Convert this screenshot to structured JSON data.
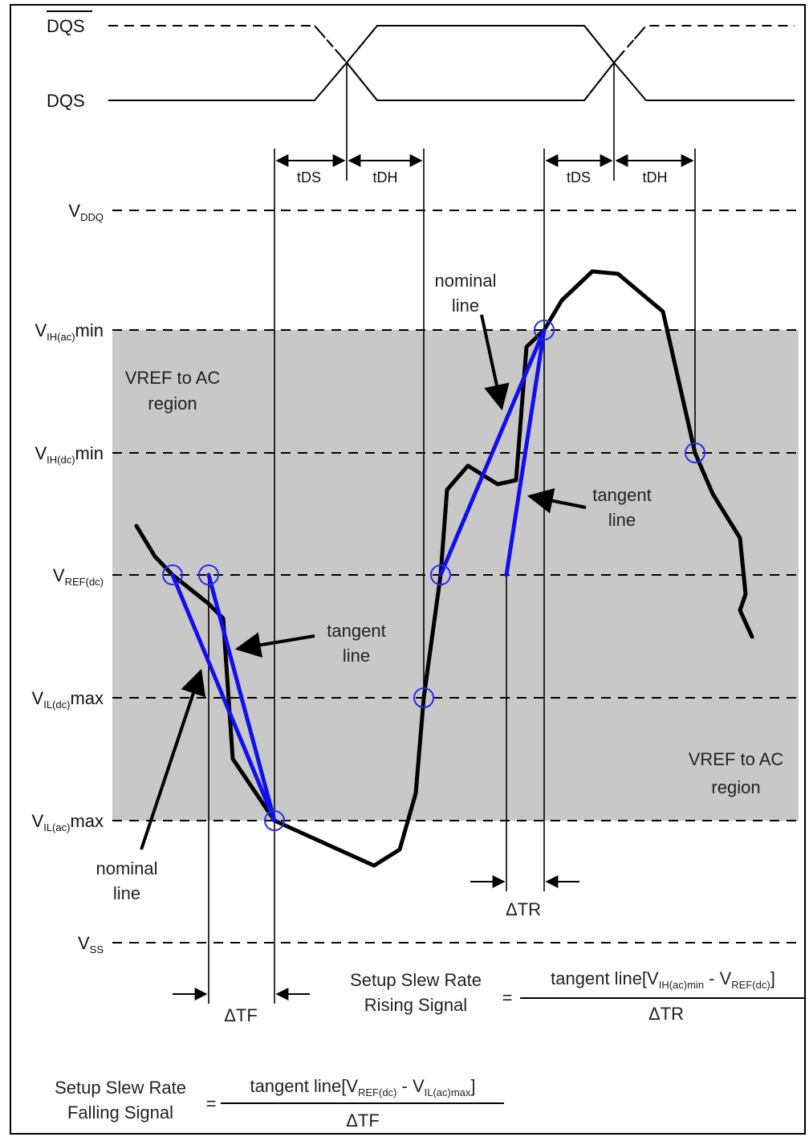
{
  "signals": {
    "dqs_bar": "DQS",
    "dqs": "DQS"
  },
  "timing": {
    "tds_1": "tDS",
    "tdh_1": "tDH",
    "tds_2": "tDS",
    "tdh_2": "tDH"
  },
  "levels": {
    "vddq": {
      "main": "V",
      "sub": "DDQ",
      "rest": ""
    },
    "vih_ac": {
      "main": "V",
      "sub": "IH(ac)",
      "rest": "min"
    },
    "vih_dc": {
      "main": "V",
      "sub": "IH(dc)",
      "rest": "min"
    },
    "vref_dc": {
      "main": "V",
      "sub": "REF(dc)",
      "rest": ""
    },
    "vil_dc": {
      "main": "V",
      "sub": "IL(dc)",
      "rest": "max"
    },
    "vil_ac": {
      "main": "V",
      "sub": "IL(ac)",
      "rest": "max"
    },
    "vss": {
      "main": "V",
      "sub": "SS",
      "rest": ""
    }
  },
  "region_top": [
    "VREF to AC",
    "region"
  ],
  "region_bottom": [
    "VREF to AC",
    "region"
  ],
  "annotations": {
    "nominal_top": [
      "nominal",
      "line"
    ],
    "tangent_right": [
      "tangent",
      "line"
    ],
    "tangent_left": [
      "tangent",
      "line"
    ],
    "nominal_bottom": [
      "nominal",
      "line"
    ]
  },
  "deltas": {
    "dtr": "ΔTR",
    "dtf": "ΔTF"
  },
  "formula_rising": {
    "lhs": [
      "Setup Slew Rate",
      "Rising Signal"
    ],
    "eq": "=",
    "num_prefix": "tangent line[V",
    "num_sub1": "IH(ac)min",
    "num_mid": " - V",
    "num_sub2": "REF(dc)",
    "num_suffix": "]",
    "den": "ΔTR"
  },
  "formula_falling": {
    "lhs": [
      "Setup Slew Rate",
      "Falling Signal"
    ],
    "eq": "=",
    "num_prefix": "tangent line[V",
    "num_sub1": "REF(dc)",
    "num_mid": " - V",
    "num_sub2": "IL(ac)max",
    "num_suffix": "]",
    "den": "ΔTF"
  },
  "colors": {
    "region": "#c8c8c8",
    "tangent": "#1010ee",
    "waveform": "#000000",
    "marker": "#2a2af0"
  }
}
